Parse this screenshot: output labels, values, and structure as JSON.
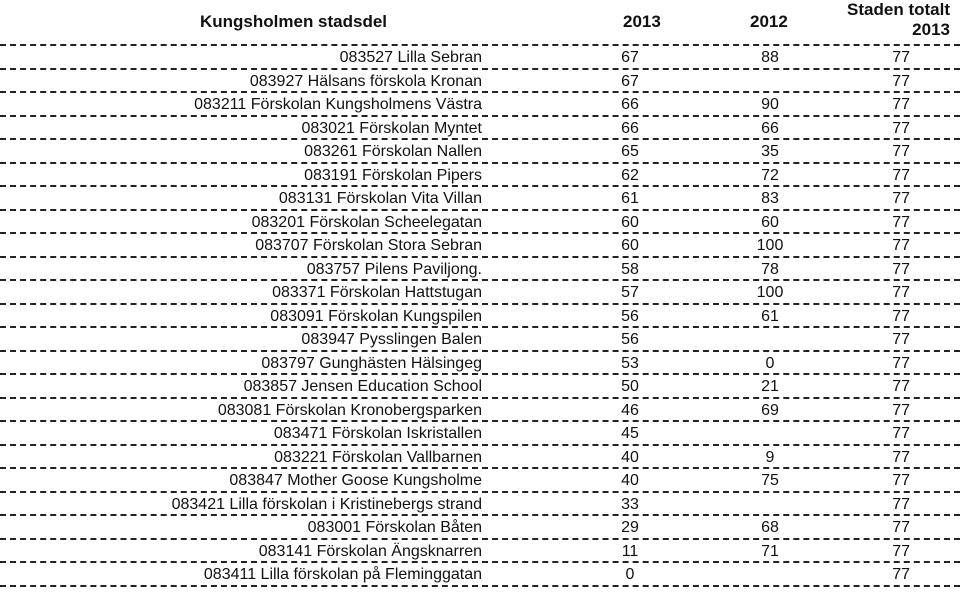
{
  "header": {
    "district": "Kungsholmen stadsdel",
    "year1": "2013",
    "year2": "2012",
    "total_line1": "Staden totalt",
    "total_line2": "2013"
  },
  "rows": [
    {
      "name": "083527 Lilla Sebran",
      "y2013": "67",
      "y2012": "88",
      "total": "77"
    },
    {
      "name": "083927 Hälsans förskola Kronan",
      "y2013": "67",
      "y2012": "",
      "total": "77"
    },
    {
      "name": "083211 Förskolan Kungsholmens Västra",
      "y2013": "66",
      "y2012": "90",
      "total": "77"
    },
    {
      "name": "083021 Förskolan Myntet",
      "y2013": "66",
      "y2012": "66",
      "total": "77"
    },
    {
      "name": "083261 Förskolan Nallen",
      "y2013": "65",
      "y2012": "35",
      "total": "77"
    },
    {
      "name": "083191 Förskolan Pipers",
      "y2013": "62",
      "y2012": "72",
      "total": "77"
    },
    {
      "name": "083131 Förskolan Vita Villan",
      "y2013": "61",
      "y2012": "83",
      "total": "77"
    },
    {
      "name": "083201 Förskolan Scheelegatan",
      "y2013": "60",
      "y2012": "60",
      "total": "77"
    },
    {
      "name": "083707 Förskolan Stora Sebran",
      "y2013": "60",
      "y2012": "100",
      "total": "77"
    },
    {
      "name": "083757 Pilens Paviljong.",
      "y2013": "58",
      "y2012": "78",
      "total": "77"
    },
    {
      "name": "083371 Förskolan Hattstugan",
      "y2013": "57",
      "y2012": "100",
      "total": "77"
    },
    {
      "name": "083091 Förskolan Kungspilen",
      "y2013": "56",
      "y2012": "61",
      "total": "77"
    },
    {
      "name": "083947 Pysslingen Balen",
      "y2013": "56",
      "y2012": "",
      "total": "77"
    },
    {
      "name": "083797 Gunghästen Hälsingeg",
      "y2013": "53",
      "y2012": "0",
      "total": "77"
    },
    {
      "name": "083857 Jensen Education School",
      "y2013": "50",
      "y2012": "21",
      "total": "77"
    },
    {
      "name": "083081 Förskolan Kronobergsparken",
      "y2013": "46",
      "y2012": "69",
      "total": "77"
    },
    {
      "name": "083471 Förskolan Iskristallen",
      "y2013": "45",
      "y2012": "",
      "total": "77"
    },
    {
      "name": "083221 Förskolan Vallbarnen",
      "y2013": "40",
      "y2012": "9",
      "total": "77"
    },
    {
      "name": "083847 Mother Goose Kungsholme",
      "y2013": "40",
      "y2012": "75",
      "total": "77"
    },
    {
      "name": "083421 Lilla förskolan i Kristinebergs strand",
      "y2013": "33",
      "y2012": "",
      "total": "77"
    },
    {
      "name": "083001 Förskolan Båten",
      "y2013": "29",
      "y2012": "68",
      "total": "77"
    },
    {
      "name": "083141 Förskolan Ängsknarren",
      "y2013": "11",
      "y2012": "71",
      "total": "77"
    },
    {
      "name": "083411 Lilla förskolan på Fleminggatan",
      "y2013": "0",
      "y2012": "",
      "total": "77"
    }
  ]
}
